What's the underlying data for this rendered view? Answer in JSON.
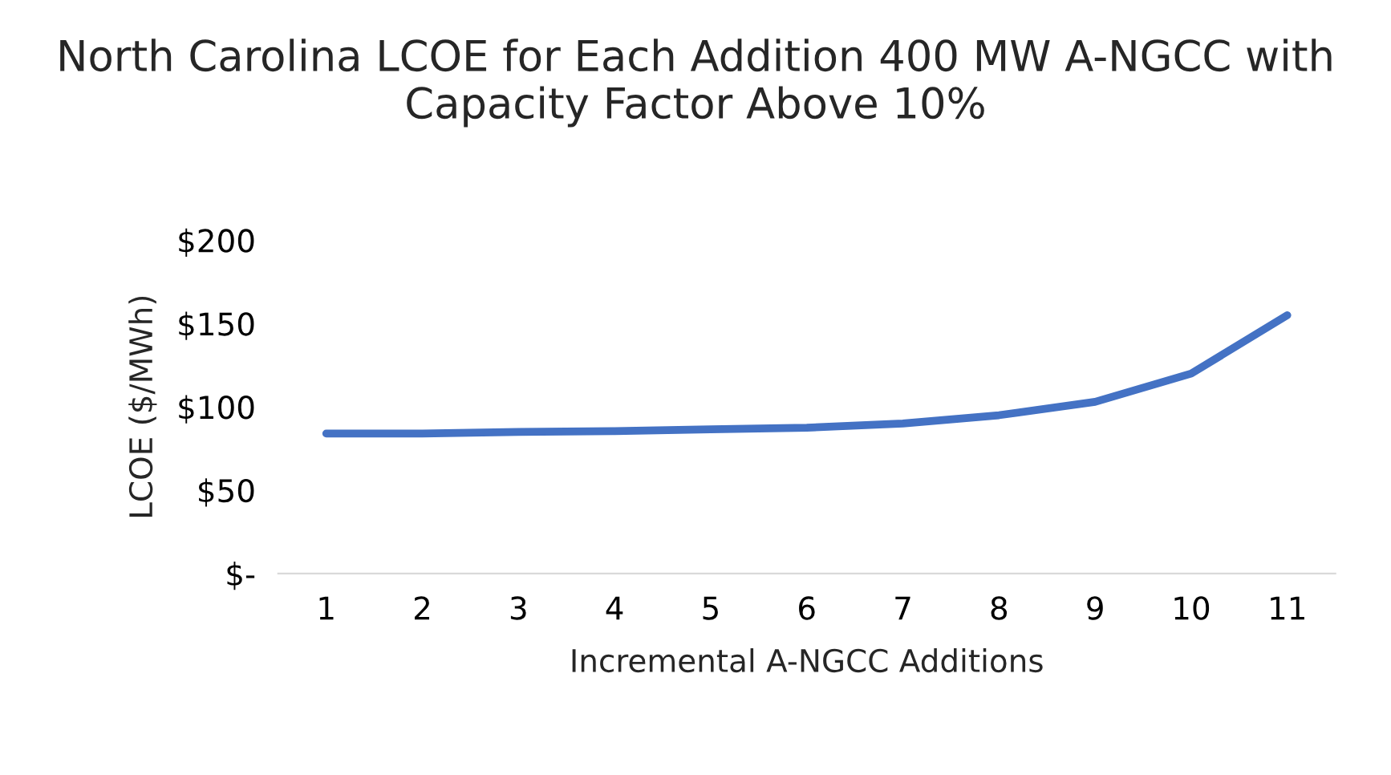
{
  "chart_data": {
    "type": "line",
    "title": "North Carolina LCOE for Each Addition 400 MW A-NGCC with Capacity Factor Above 10%",
    "xlabel": "Incremental A-NGCC Additions",
    "ylabel": "LCOE ($/MWh)",
    "categories": [
      "1",
      "2",
      "3",
      "4",
      "5",
      "6",
      "7",
      "8",
      "9",
      "10",
      "11"
    ],
    "series": [
      {
        "color": "#4472c4",
        "values": [
          84,
          84,
          85,
          85.5,
          86.5,
          87.5,
          90,
          95,
          103,
          120,
          155
        ]
      }
    ],
    "ylim": [
      0,
      200
    ],
    "yticks": [
      {
        "value": 0,
        "label": "$-"
      },
      {
        "value": 50,
        "label": "$50"
      },
      {
        "value": 100,
        "label": "$100"
      },
      {
        "value": 150,
        "label": "$150"
      },
      {
        "value": 200,
        "label": "$200"
      }
    ],
    "grid": false,
    "legend": false,
    "marker": "none",
    "line_style": "solid"
  }
}
